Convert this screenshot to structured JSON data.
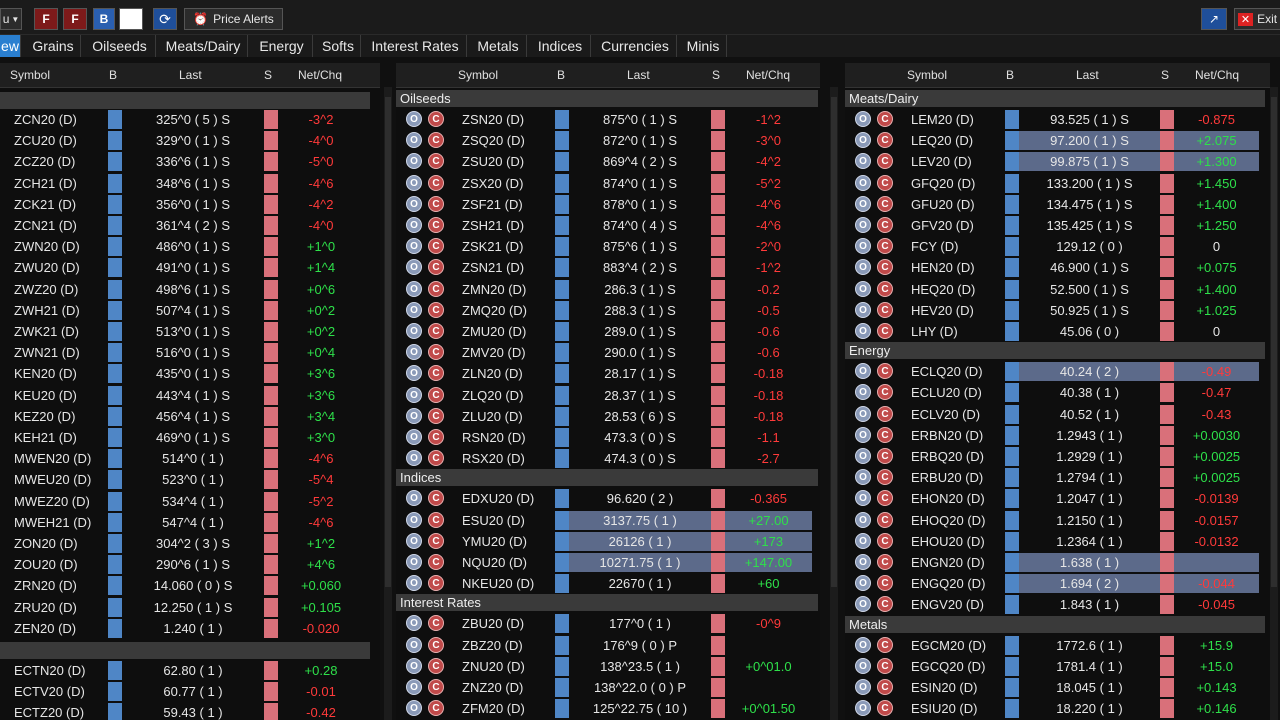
{
  "toolbar": {
    "left_text": "u",
    "btn_f1": "F",
    "btn_f2": "F",
    "btn_b": "B",
    "price_alerts": "Price Alerts",
    "exit": "Exit"
  },
  "tabs": [
    "ew",
    "Grains",
    "Oilseeds",
    "Meats/Dairy",
    "Energy",
    "Softs",
    "Interest Rates",
    "Metals",
    "Indices",
    "Currencies",
    "Minis"
  ],
  "columns": {
    "symbol": "Symbol",
    "b": "B",
    "last": "Last",
    "s": "S",
    "net": "Net/Chq"
  },
  "panel1": {
    "rows": [
      {
        "sym": "ZCN20 (D)",
        "last": "325^0 ( 5 )  S",
        "net": "-3^2",
        "dir": "neg"
      },
      {
        "sym": "ZCU20 (D)",
        "last": "329^0 ( 1 )  S",
        "net": "-4^0",
        "dir": "neg"
      },
      {
        "sym": "ZCZ20 (D)",
        "last": "336^6 ( 1 )  S",
        "net": "-5^0",
        "dir": "neg"
      },
      {
        "sym": "ZCH21 (D)",
        "last": "348^6 ( 1 )  S",
        "net": "-4^6",
        "dir": "neg"
      },
      {
        "sym": "ZCK21 (D)",
        "last": "356^0 ( 1 )  S",
        "net": "-4^2",
        "dir": "neg"
      },
      {
        "sym": "ZCN21 (D)",
        "last": "361^4 ( 2 )  S",
        "net": "-4^0",
        "dir": "neg"
      },
      {
        "sym": "ZWN20 (D)",
        "last": "486^0 ( 1 )  S",
        "net": "+1^0",
        "dir": "pos"
      },
      {
        "sym": "ZWU20 (D)",
        "last": "491^0 ( 1 )  S",
        "net": "+1^4",
        "dir": "pos"
      },
      {
        "sym": "ZWZ20 (D)",
        "last": "498^6 ( 1 )  S",
        "net": "+0^6",
        "dir": "pos"
      },
      {
        "sym": "ZWH21 (D)",
        "last": "507^4 ( 1 )  S",
        "net": "+0^2",
        "dir": "pos"
      },
      {
        "sym": "ZWK21 (D)",
        "last": "513^0 ( 1 )  S",
        "net": "+0^2",
        "dir": "pos"
      },
      {
        "sym": "ZWN21 (D)",
        "last": "516^0 ( 1 )  S",
        "net": "+0^4",
        "dir": "pos"
      },
      {
        "sym": "KEN20 (D)",
        "last": "435^0 ( 1 )  S",
        "net": "+3^6",
        "dir": "pos"
      },
      {
        "sym": "KEU20 (D)",
        "last": "443^4 ( 1 )  S",
        "net": "+3^6",
        "dir": "pos"
      },
      {
        "sym": "KEZ20 (D)",
        "last": "456^4 ( 1 )  S",
        "net": "+3^4",
        "dir": "pos"
      },
      {
        "sym": "KEH21 (D)",
        "last": "469^0 ( 1 )  S",
        "net": "+3^0",
        "dir": "pos"
      },
      {
        "sym": "MWEN20 (D)",
        "last": "514^0 ( 1 )",
        "net": "-4^6",
        "dir": "neg"
      },
      {
        "sym": "MWEU20 (D)",
        "last": "523^0 ( 1 )",
        "net": "-5^4",
        "dir": "neg"
      },
      {
        "sym": "MWEZ20 (D)",
        "last": "534^4 ( 1 )",
        "net": "-5^2",
        "dir": "neg"
      },
      {
        "sym": "MWEH21 (D)",
        "last": "547^4 ( 1 )",
        "net": "-4^6",
        "dir": "neg"
      },
      {
        "sym": "ZON20 (D)",
        "last": "304^2 ( 3 )  S",
        "net": "+1^2",
        "dir": "pos"
      },
      {
        "sym": "ZOU20 (D)",
        "last": "290^6 ( 1 )  S",
        "net": "+4^6",
        "dir": "pos"
      },
      {
        "sym": "ZRN20 (D)",
        "last": "14.060 ( 0 )  S",
        "net": "+0.060",
        "dir": "pos"
      },
      {
        "sym": "ZRU20 (D)",
        "last": "12.250 ( 1 )  S",
        "net": "+0.105",
        "dir": "pos"
      },
      {
        "sym": "ZEN20 (D)",
        "last": "1.240 ( 1 )",
        "net": "-0.020",
        "dir": "neg"
      }
    ],
    "rows2": [
      {
        "sym": "ECTN20 (D)",
        "last": "62.80 ( 1 )",
        "net": "+0.28",
        "dir": "pos"
      },
      {
        "sym": "ECTV20 (D)",
        "last": "60.77 ( 1 )",
        "net": "-0.01",
        "dir": "neg"
      },
      {
        "sym": "ECTZ20 (D)",
        "last": "59.43 ( 1 )",
        "net": "-0.42",
        "dir": "neg"
      }
    ]
  },
  "panel2": {
    "groups": [
      {
        "title": "Oilseeds",
        "rows": [
          {
            "sym": "ZSN20 (D)",
            "last": "875^0 ( 1 )  S",
            "net": "-1^2",
            "dir": "neg"
          },
          {
            "sym": "ZSQ20 (D)",
            "last": "872^0 ( 1 )  S",
            "net": "-3^0",
            "dir": "neg"
          },
          {
            "sym": "ZSU20 (D)",
            "last": "869^4 ( 2 )  S",
            "net": "-4^2",
            "dir": "neg"
          },
          {
            "sym": "ZSX20 (D)",
            "last": "874^0 ( 1 )  S",
            "net": "-5^2",
            "dir": "neg"
          },
          {
            "sym": "ZSF21 (D)",
            "last": "878^0 ( 1 )  S",
            "net": "-4^6",
            "dir": "neg"
          },
          {
            "sym": "ZSH21 (D)",
            "last": "874^0 ( 4 )  S",
            "net": "-4^6",
            "dir": "neg"
          },
          {
            "sym": "ZSK21 (D)",
            "last": "875^6 ( 1 )  S",
            "net": "-2^0",
            "dir": "neg"
          },
          {
            "sym": "ZSN21 (D)",
            "last": "883^4 ( 2 )  S",
            "net": "-1^2",
            "dir": "neg"
          },
          {
            "sym": "ZMN20 (D)",
            "last": "286.3 ( 1 )  S",
            "net": "-0.2",
            "dir": "neg"
          },
          {
            "sym": "ZMQ20 (D)",
            "last": "288.3 ( 1 )  S",
            "net": "-0.5",
            "dir": "neg"
          },
          {
            "sym": "ZMU20 (D)",
            "last": "289.0 ( 1 )  S",
            "net": "-0.6",
            "dir": "neg"
          },
          {
            "sym": "ZMV20 (D)",
            "last": "290.0 ( 1 )  S",
            "net": "-0.6",
            "dir": "neg"
          },
          {
            "sym": "ZLN20 (D)",
            "last": "28.17 ( 1 )  S",
            "net": "-0.18",
            "dir": "neg"
          },
          {
            "sym": "ZLQ20 (D)",
            "last": "28.37 ( 1 )  S",
            "net": "-0.18",
            "dir": "neg"
          },
          {
            "sym": "ZLU20 (D)",
            "last": "28.53 ( 6 )  S",
            "net": "-0.18",
            "dir": "neg"
          },
          {
            "sym": "RSN20 (D)",
            "last": "473.3 ( 0 )  S",
            "net": "-1.1",
            "dir": "neg"
          },
          {
            "sym": "RSX20 (D)",
            "last": "474.3 ( 0 )  S",
            "net": "-2.7",
            "dir": "neg"
          }
        ]
      },
      {
        "title": "Indices",
        "rows": [
          {
            "sym": "EDXU20 (D)",
            "last": "96.620 ( 2 )",
            "net": "-0.365",
            "dir": "neg"
          },
          {
            "sym": "ESU20 (D)",
            "last": "3137.75 ( 1 )",
            "net": "+27.00",
            "dir": "pos",
            "hl": true
          },
          {
            "sym": "YMU20 (D)",
            "last": "26126 ( 1 )",
            "net": "+173",
            "dir": "pos",
            "hl": true
          },
          {
            "sym": "NQU20 (D)",
            "last": "10271.75 ( 1 )",
            "net": "+147.00",
            "dir": "pos",
            "hl": true
          },
          {
            "sym": "NKEU20 (D)",
            "last": "22670 ( 1 )",
            "net": "+60",
            "dir": "pos"
          }
        ]
      },
      {
        "title": "Interest Rates",
        "rows": [
          {
            "sym": "ZBU20 (D)",
            "last": "177^0 ( 1 )",
            "net": "-0^9",
            "dir": "neg"
          },
          {
            "sym": "ZBZ20 (D)",
            "last": "176^9 ( 0 )  P",
            "net": "",
            "dir": "zero"
          },
          {
            "sym": "ZNU20 (D)",
            "last": "138^23.5 ( 1 )",
            "net": "+0^01.0",
            "dir": "pos"
          },
          {
            "sym": "ZNZ20 (D)",
            "last": "138^22.0 ( 0 )  P",
            "net": "",
            "dir": "zero"
          },
          {
            "sym": "ZFM20 (D)",
            "last": "125^22.75 ( 10 )",
            "net": "+0^01.50",
            "dir": "pos"
          }
        ]
      }
    ]
  },
  "panel3": {
    "groups": [
      {
        "title": "Meats/Dairy",
        "rows": [
          {
            "sym": "LEM20 (D)",
            "last": "93.525 ( 1 )  S",
            "net": "-0.875",
            "dir": "neg"
          },
          {
            "sym": "LEQ20 (D)",
            "last": "97.200 ( 1 )  S",
            "net": "+2.075",
            "dir": "pos",
            "hl": true
          },
          {
            "sym": "LEV20 (D)",
            "last": "99.875 ( 1 )  S",
            "net": "+1.300",
            "dir": "pos",
            "hl": true
          },
          {
            "sym": "GFQ20 (D)",
            "last": "133.200 ( 1 )  S",
            "net": "+1.450",
            "dir": "pos"
          },
          {
            "sym": "GFU20 (D)",
            "last": "134.475 ( 1 )  S",
            "net": "+1.400",
            "dir": "pos"
          },
          {
            "sym": "GFV20 (D)",
            "last": "135.425 ( 1 )  S",
            "net": "+1.250",
            "dir": "pos"
          },
          {
            "sym": "FCY (D)",
            "last": "129.12 ( 0 )",
            "net": "0",
            "dir": "zero"
          },
          {
            "sym": "HEN20 (D)",
            "last": "46.900 ( 1 )  S",
            "net": "+0.075",
            "dir": "pos"
          },
          {
            "sym": "HEQ20 (D)",
            "last": "52.500 ( 1 )  S",
            "net": "+1.400",
            "dir": "pos"
          },
          {
            "sym": "HEV20 (D)",
            "last": "50.925 ( 1 )  S",
            "net": "+1.025",
            "dir": "pos"
          },
          {
            "sym": "LHY (D)",
            "last": "45.06 ( 0 )",
            "net": "0",
            "dir": "zero"
          }
        ]
      },
      {
        "title": "Energy",
        "rows": [
          {
            "sym": "ECLQ20 (D)",
            "last": "40.24 ( 2 )",
            "net": "-0.49",
            "dir": "neg",
            "hl": true
          },
          {
            "sym": "ECLU20 (D)",
            "last": "40.38 ( 1 )",
            "net": "-0.47",
            "dir": "neg"
          },
          {
            "sym": "ECLV20 (D)",
            "last": "40.52 ( 1 )",
            "net": "-0.43",
            "dir": "neg"
          },
          {
            "sym": "ERBN20 (D)",
            "last": "1.2943 ( 1 )",
            "net": "+0.0030",
            "dir": "pos"
          },
          {
            "sym": "ERBQ20 (D)",
            "last": "1.2929 ( 1 )",
            "net": "+0.0025",
            "dir": "pos"
          },
          {
            "sym": "ERBU20 (D)",
            "last": "1.2794 ( 1 )",
            "net": "+0.0025",
            "dir": "pos"
          },
          {
            "sym": "EHON20 (D)",
            "last": "1.2047 ( 1 )",
            "net": "-0.0139",
            "dir": "neg"
          },
          {
            "sym": "EHOQ20 (D)",
            "last": "1.2150 ( 1 )",
            "net": "-0.0157",
            "dir": "neg"
          },
          {
            "sym": "EHOU20 (D)",
            "last": "1.2364 ( 1 )",
            "net": "-0.0132",
            "dir": "neg"
          },
          {
            "sym": "ENGN20 (D)",
            "last": "1.638 ( 1 )",
            "net": "",
            "dir": "neg",
            "hl": true
          },
          {
            "sym": "ENGQ20 (D)",
            "last": "1.694 ( 2 )",
            "net": "-0.044",
            "dir": "neg",
            "hl": true
          },
          {
            "sym": "ENGV20 (D)",
            "last": "1.843 ( 1 )",
            "net": "-0.045",
            "dir": "neg"
          }
        ]
      },
      {
        "title": "Metals",
        "rows": [
          {
            "sym": "EGCM20 (D)",
            "last": "1772.6 ( 1 )",
            "net": "+15.9",
            "dir": "pos"
          },
          {
            "sym": "EGCQ20 (D)",
            "last": "1781.4 ( 1 )",
            "net": "+15.0",
            "dir": "pos"
          },
          {
            "sym": "ESIN20 (D)",
            "last": "18.045 ( 1 )",
            "net": "+0.143",
            "dir": "pos"
          },
          {
            "sym": "ESIU20 (D)",
            "last": "18.220 ( 1 )",
            "net": "+0.146",
            "dir": "pos"
          }
        ]
      }
    ]
  },
  "icons": {
    "option": "O",
    "chart": "C"
  },
  "colors": {
    "pos": "#2ee04a",
    "neg": "#ff3a3a",
    "bid": "#4f86c6",
    "ask": "#d9707a",
    "highlight": "#5c6a8a",
    "group": "#3a3a3a"
  }
}
